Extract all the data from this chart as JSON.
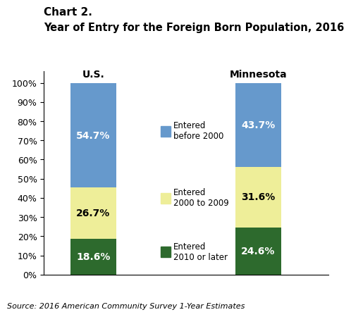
{
  "title_line1": "Chart 2.",
  "title_line2": "Year of Entry for the Foreign Born Population, 2016",
  "categories": [
    "U.S.",
    "Minnesota"
  ],
  "segments": {
    "entered_2010_or_later": [
      18.6,
      24.6
    ],
    "entered_2000_to_2009": [
      26.7,
      31.6
    ],
    "entered_before_2000": [
      54.7,
      43.7
    ]
  },
  "colors": {
    "entered_2010_or_later": "#2d6a2d",
    "entered_2000_to_2009": "#eeee99",
    "entered_before_2000": "#6699cc"
  },
  "source": "Source: 2016 American Community Survey 1-Year Estimates",
  "bar_width": 0.55,
  "bar_positions": [
    0.0,
    2.0
  ],
  "xlim": [
    -0.6,
    2.85
  ],
  "ylim": [
    0,
    106
  ],
  "yticks": [
    0,
    10,
    20,
    30,
    40,
    50,
    60,
    70,
    80,
    90,
    100
  ],
  "ytick_labels": [
    "0%",
    "10%",
    "20%",
    "30%",
    "40%",
    "50%",
    "60%",
    "70%",
    "80%",
    "90%",
    "100%"
  ]
}
